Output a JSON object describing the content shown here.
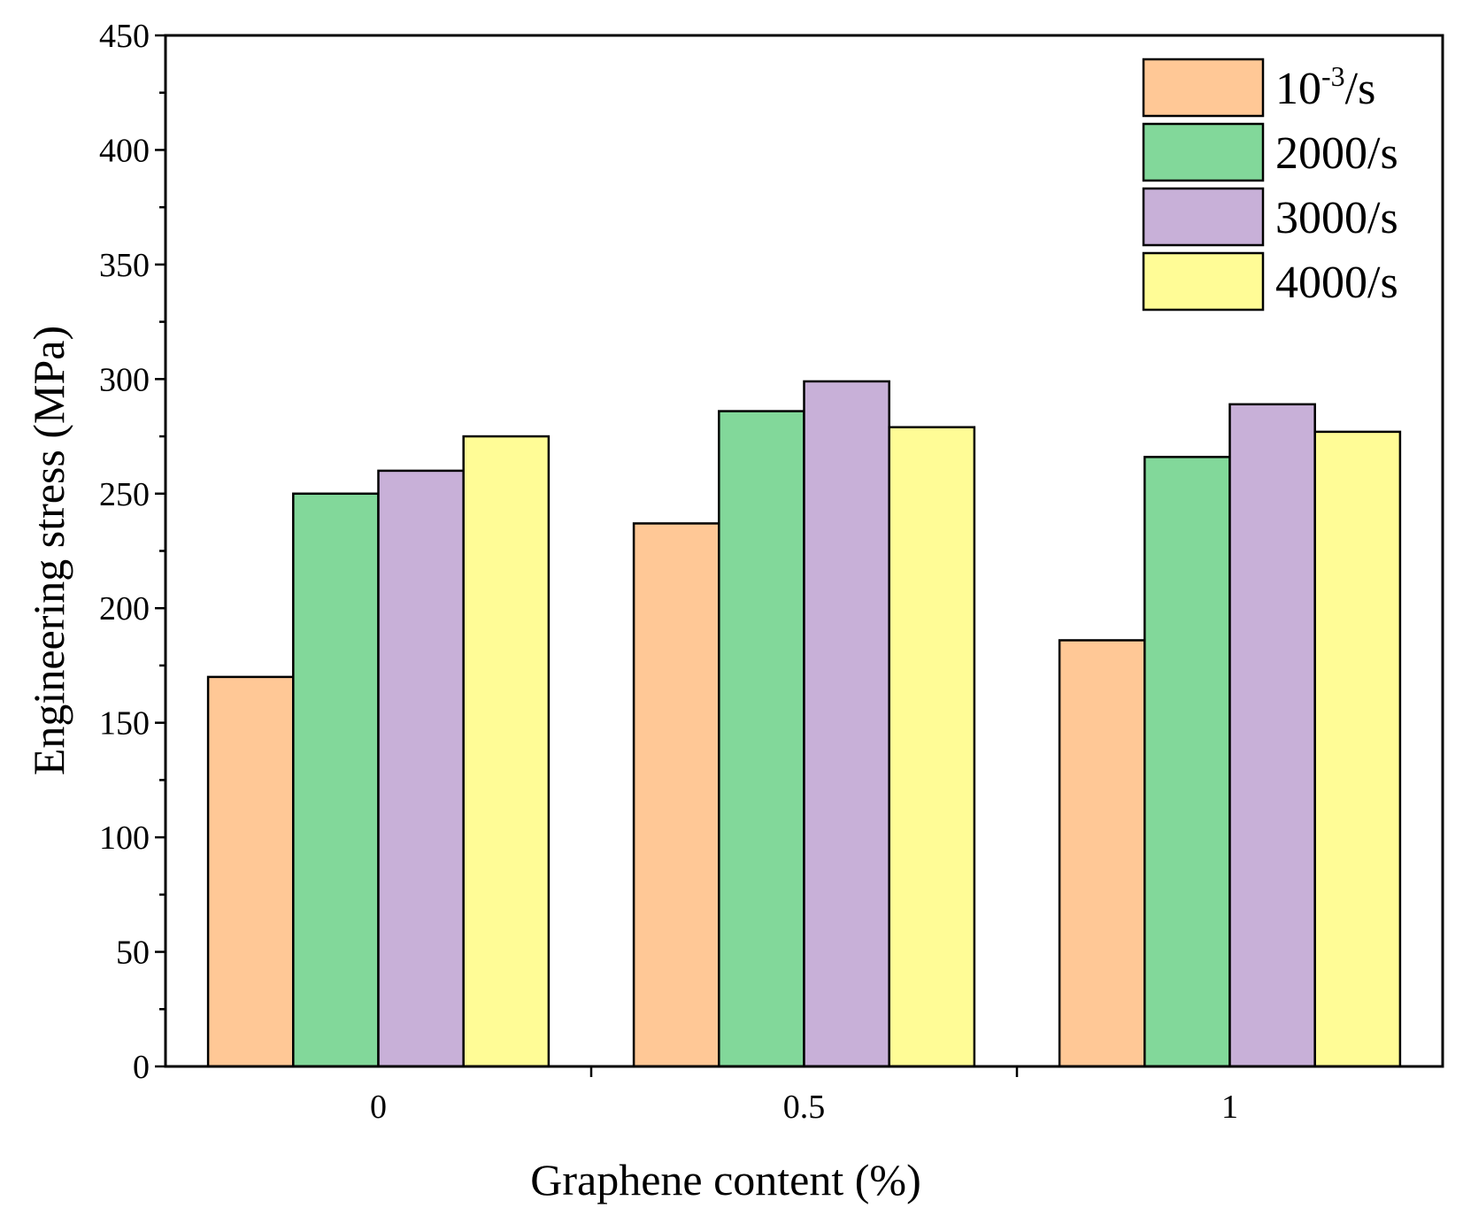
{
  "chart_data": {
    "type": "bar",
    "xlabel": "Graphene content (%)",
    "ylabel": "Engineering stress (MPa)",
    "ylim": [
      0,
      450
    ],
    "yticks": [
      0,
      50,
      100,
      150,
      200,
      250,
      300,
      350,
      400,
      450
    ],
    "categories": [
      "0",
      "0.5",
      "1"
    ],
    "series": [
      {
        "name": "10-3/s",
        "name_base": "10",
        "name_sup": "-3",
        "name_suffix": "/s",
        "color": "#FFC896",
        "values": [
          170,
          237,
          186
        ]
      },
      {
        "name": "2000/s",
        "color": "#82D89A",
        "values": [
          250,
          286,
          266
        ]
      },
      {
        "name": "3000/s",
        "color": "#C8B0D8",
        "values": [
          260,
          299,
          289
        ]
      },
      {
        "name": "4000/s",
        "color": "#FFFC96",
        "values": [
          275,
          279,
          277
        ]
      }
    ],
    "legend": "top-right",
    "grid": false
  }
}
